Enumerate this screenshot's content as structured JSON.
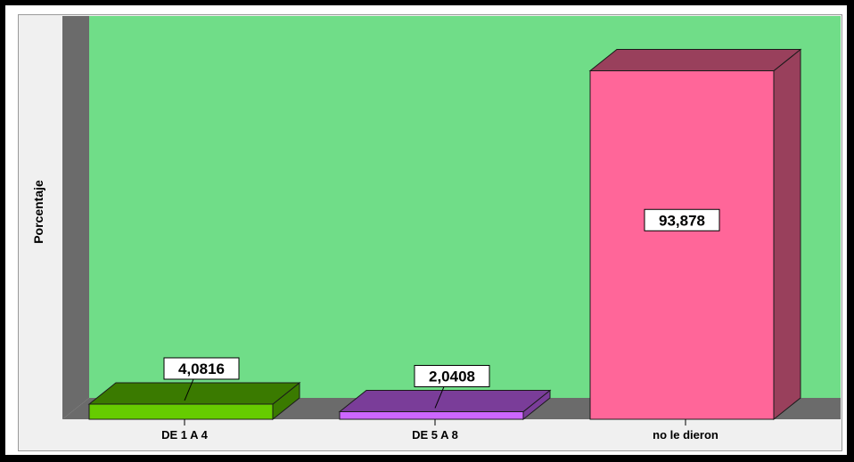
{
  "chart_data": {
    "type": "bar",
    "categories": [
      "DE 1 A 4",
      "DE 5 A 8",
      "no le dieron"
    ],
    "values": [
      4.0816,
      2.0408,
      93.878
    ],
    "value_labels": [
      "4,0816",
      "2,0408",
      "93,878"
    ],
    "title": "",
    "xlabel": "",
    "ylabel": "Porcentaje",
    "ylim": [
      0,
      100
    ],
    "grid": false,
    "three_d": true,
    "colors": {
      "plot_background": "#70dd88",
      "side_wall": "#6b6b6b",
      "bars": [
        {
          "front": "#66cc00",
          "top": "#3a7a00",
          "side": "#3a7a00"
        },
        {
          "front": "#cc66ff",
          "top": "#7a3d99",
          "side": "#7a3d99"
        },
        {
          "front": "#ff6699",
          "top": "#99405c",
          "side": "#99405c"
        }
      ]
    }
  }
}
